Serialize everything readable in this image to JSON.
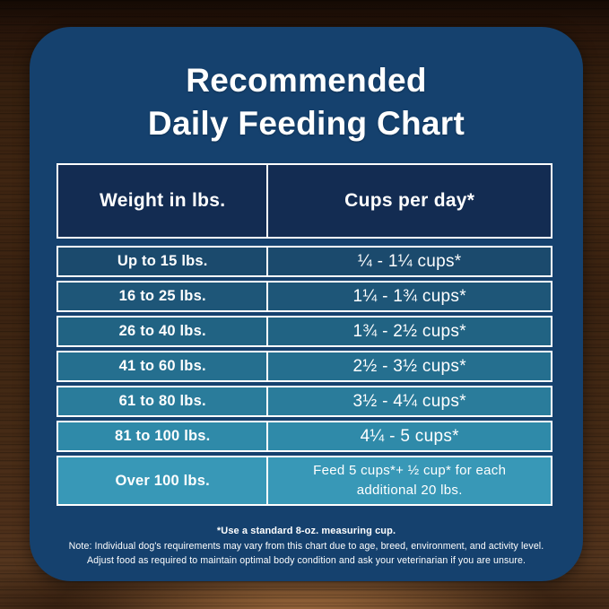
{
  "colors": {
    "card_bg": "#15416e",
    "header_bg": "#132c52",
    "border": "#ffffff",
    "text": "#ffffff",
    "row_gradient": [
      "#1b4a6d",
      "#1e5678",
      "#216383",
      "#256f8f",
      "#2a7c9b",
      "#2f8aa9",
      "#3898b7"
    ]
  },
  "title": {
    "line1": "Recommended",
    "line2": "Daily Feeding Chart"
  },
  "table": {
    "headers": {
      "weight": "Weight in lbs.",
      "cups": "Cups per day*"
    },
    "rows": [
      {
        "weight": "Up to 15 lbs.",
        "cups": "¼ - 1¼ cups*",
        "color": "#1b4a6d"
      },
      {
        "weight": "16 to 25 lbs.",
        "cups": "1¼ - 1¾ cups*",
        "color": "#1e5678"
      },
      {
        "weight": "26 to 40 lbs.",
        "cups": "1¾ - 2½ cups*",
        "color": "#216383"
      },
      {
        "weight": "41 to 60 lbs.",
        "cups": "2½ - 3½ cups*",
        "color": "#256f8f"
      },
      {
        "weight": "61 to 80 lbs.",
        "cups": "3½ - 4¼ cups*",
        "color": "#2a7c9b"
      },
      {
        "weight": "81 to 100 lbs.",
        "cups": "4¼ - 5 cups*",
        "color": "#2f8aa9"
      },
      {
        "weight": "Over 100 lbs.",
        "cups": "Feed 5 cups*+ ½ cup* for each\nadditional 20 lbs.",
        "color": "#3898b7"
      }
    ]
  },
  "footnotes": {
    "line1": "*Use a standard 8-oz. measuring cup.",
    "line2": "Note: Individual dog's requirements may vary from this chart due to age, breed, environment, and activity level.",
    "line3": "Adjust food as required to maintain optimal body condition and ask your veterinarian if you are unsure."
  },
  "chart_data": {
    "type": "table",
    "title": "Recommended Daily Feeding Chart",
    "columns": [
      "Weight in lbs.",
      "Cups per day*"
    ],
    "rows": [
      [
        "Up to 15 lbs.",
        "¼ - 1¼ cups*"
      ],
      [
        "16 to 25 lbs.",
        "1¼ - 1¾ cups*"
      ],
      [
        "26 to 40 lbs.",
        "1¾ - 2½ cups*"
      ],
      [
        "41 to 60 lbs.",
        "2½ - 3½ cups*"
      ],
      [
        "61 to 80 lbs.",
        "3½ - 4¼ cups*"
      ],
      [
        "81 to 100 lbs.",
        "4¼ - 5 cups*"
      ],
      [
        "Over 100 lbs.",
        "Feed 5 cups*+ ½ cup* for each additional 20 lbs."
      ]
    ],
    "footnotes": [
      "*Use a standard 8-oz. measuring cup.",
      "Note: Individual dog's requirements may vary from this chart due to age, breed, environment, and activity level. Adjust food as required to maintain optimal body condition and ask your veterinarian if you are unsure."
    ],
    "layout_hints": {
      "row_color_gradient": "dark navy to light teal, top to bottom",
      "background": "dark wood texture"
    }
  }
}
